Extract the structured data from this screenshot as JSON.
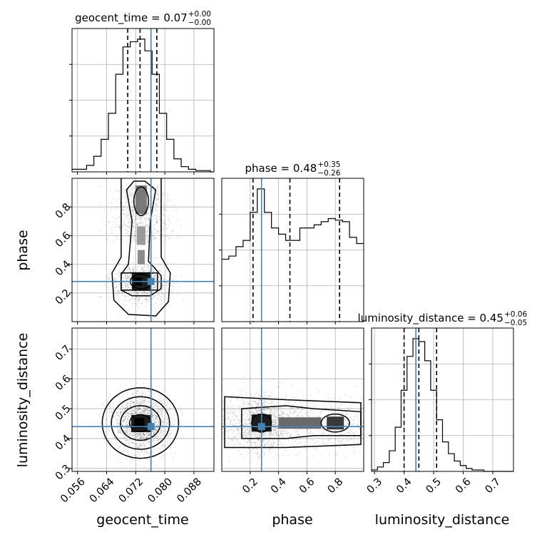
{
  "chart_data": {
    "type": "corner",
    "truth_color": "#4682b4",
    "parameters": [
      {
        "name": "geocent_time",
        "title": "geocent_time = 0.07",
        "median": 0.07,
        "plus": "+0.00",
        "minus": "−0.00",
        "range": [
          0.0545,
          0.0935
        ],
        "ticks": [
          0.056,
          0.064,
          0.072,
          0.08,
          0.088
        ],
        "tick_labels": [
          "0.056",
          "0.064",
          "0.072",
          "0.080",
          "0.088"
        ],
        "quantiles": [
          0.0698,
          0.0732,
          0.0778
        ],
        "truth": 0.0762
      },
      {
        "name": "phase",
        "title": "phase = 0.48",
        "median": 0.48,
        "plus": "+0.35",
        "minus": "−0.26",
        "range": [
          0.0,
          1.0
        ],
        "ticks": [
          0.2,
          0.4,
          0.6,
          0.8
        ],
        "tick_labels": [
          "0.2",
          "0.4",
          "0.6",
          "0.8"
        ],
        "quantiles": [
          0.22,
          0.48,
          0.83
        ],
        "truth": 0.28
      },
      {
        "name": "luminosity_distance",
        "title": "luminosity_distance = 0.45",
        "median": 0.45,
        "plus": "+0.06",
        "minus": "−0.05",
        "range": [
          0.29,
          0.77
        ],
        "ticks": [
          0.3,
          0.4,
          0.5,
          0.6,
          0.7
        ],
        "tick_labels": [
          "0.3",
          "0.4",
          "0.5",
          "0.6",
          "0.7"
        ],
        "quantiles": [
          0.4,
          0.45,
          0.51
        ],
        "truth": 0.44
      }
    ],
    "histograms": [
      {
        "parameter": "geocent_time",
        "bins": [
          0.0545,
          0.0565,
          0.0585,
          0.0605,
          0.0625,
          0.0645,
          0.0665,
          0.0685,
          0.0705,
          0.0725,
          0.0745,
          0.0765,
          0.0785,
          0.0805,
          0.0825,
          0.0845,
          0.0865,
          0.0885,
          0.0905,
          0.0925,
          0.0935
        ],
        "counts": [
          2,
          2,
          5,
          12,
          25,
          45,
          75,
          96,
          100,
          102,
          93,
          75,
          45,
          25,
          10,
          4,
          2,
          1,
          1,
          0
        ]
      },
      {
        "parameter": "phase",
        "bins": [
          0.0,
          0.05,
          0.1,
          0.15,
          0.2,
          0.25,
          0.3,
          0.35,
          0.4,
          0.45,
          0.5,
          0.55,
          0.6,
          0.65,
          0.7,
          0.75,
          0.8,
          0.85,
          0.9,
          0.95,
          1.0
        ],
        "counts": [
          40,
          42,
          48,
          52,
          70,
          85,
          70,
          60,
          56,
          52,
          52,
          60,
          60,
          62,
          64,
          66,
          65,
          64,
          54,
          50
        ]
      },
      {
        "parameter": "luminosity_distance",
        "bins": [
          0.29,
          0.31,
          0.33,
          0.35,
          0.37,
          0.39,
          0.41,
          0.43,
          0.45,
          0.47,
          0.49,
          0.51,
          0.53,
          0.55,
          0.57,
          0.59,
          0.61,
          0.63,
          0.65,
          0.67,
          0.69,
          0.71,
          0.73,
          0.75,
          0.77
        ],
        "counts": [
          1,
          3,
          6,
          14,
          30,
          55,
          78,
          90,
          88,
          75,
          55,
          35,
          20,
          12,
          7,
          4,
          2,
          1,
          1,
          0,
          0,
          0,
          0,
          0
        ]
      }
    ],
    "pairs": [
      {
        "x": "geocent_time",
        "y": "phase"
      },
      {
        "x": "geocent_time",
        "y": "luminosity_distance"
      },
      {
        "x": "phase",
        "y": "luminosity_distance"
      }
    ],
    "grid": true
  }
}
